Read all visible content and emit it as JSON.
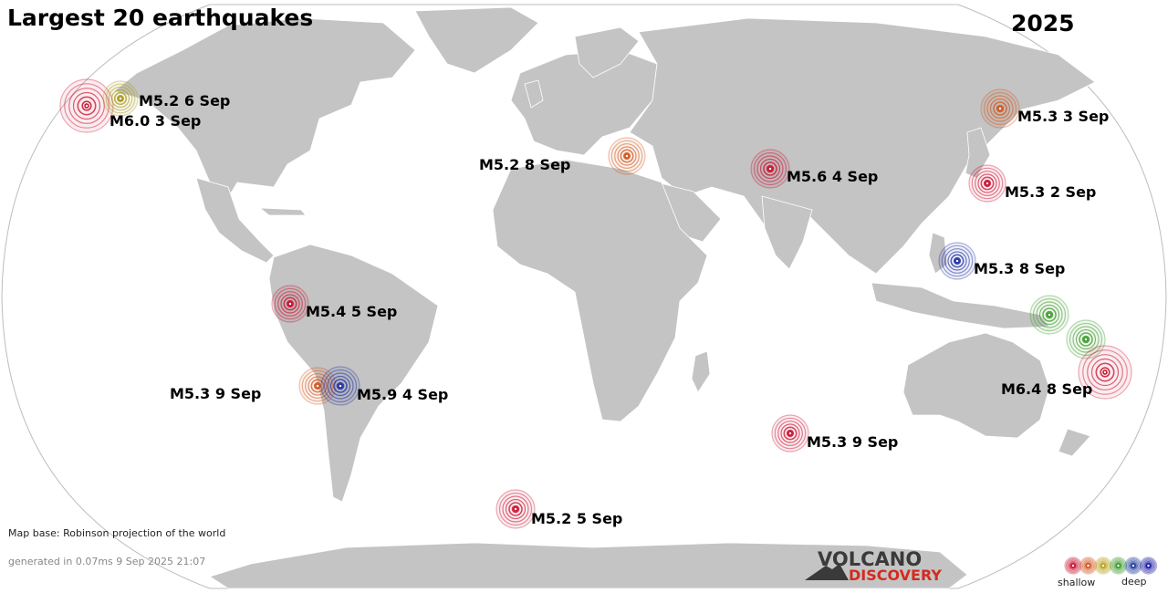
{
  "title": "Largest 20 earthquakes",
  "year": "2025",
  "map_base": "Map base: Robinson projection of the world",
  "generated": "generated in 0.07ms  9 Sep 2025 21:07",
  "logo": {
    "line1": "VOLCANO",
    "line2": "DISCOVERY"
  },
  "legend": {
    "shallow": "shallow",
    "deep": "deep",
    "colors": [
      "#c8102e",
      "#d2551e",
      "#b8a01a",
      "#3a9a2a",
      "#1c3a9c",
      "#1a1aa0"
    ]
  },
  "depth_colors": {
    "shallow": "#c8102e",
    "mid_shallow": "#d2551e",
    "mid": "#a89a1c",
    "intermediate": "#3a9a2a",
    "deep": "#1f2fa0"
  },
  "earthquakes": [
    {
      "label": "M6.0  3 Sep",
      "color": "#c8102e"
    },
    {
      "label": "M5.2  6 Sep",
      "color": "#a89a1c"
    },
    {
      "label": "M5.2  8 Sep",
      "color": "#d2551e"
    },
    {
      "label": "M5.6  4 Sep",
      "color": "#c8102e"
    },
    {
      "label": "M5.3  3 Sep",
      "color": "#d2551e"
    },
    {
      "label": "M5.3  2 Sep",
      "color": "#c8102e"
    },
    {
      "label": "M5.3  8 Sep",
      "color": "#1f2fa0"
    },
    {
      "label": "M5.4  5 Sep",
      "color": "#c8102e"
    },
    {
      "label": "M5.3  9 Sep",
      "color": "#d2551e"
    },
    {
      "label": "M5.9  4 Sep",
      "color": "#1f2fa0"
    },
    {
      "label": "",
      "color": "#3a9a2a"
    },
    {
      "label": "",
      "color": "#3a9a2a"
    },
    {
      "label": "M6.4  8 Sep",
      "color": "#c8102e"
    },
    {
      "label": "M5.3  9 Sep",
      "color": "#c8102e"
    },
    {
      "label": "M5.2  5 Sep",
      "color": "#c8102e"
    }
  ]
}
